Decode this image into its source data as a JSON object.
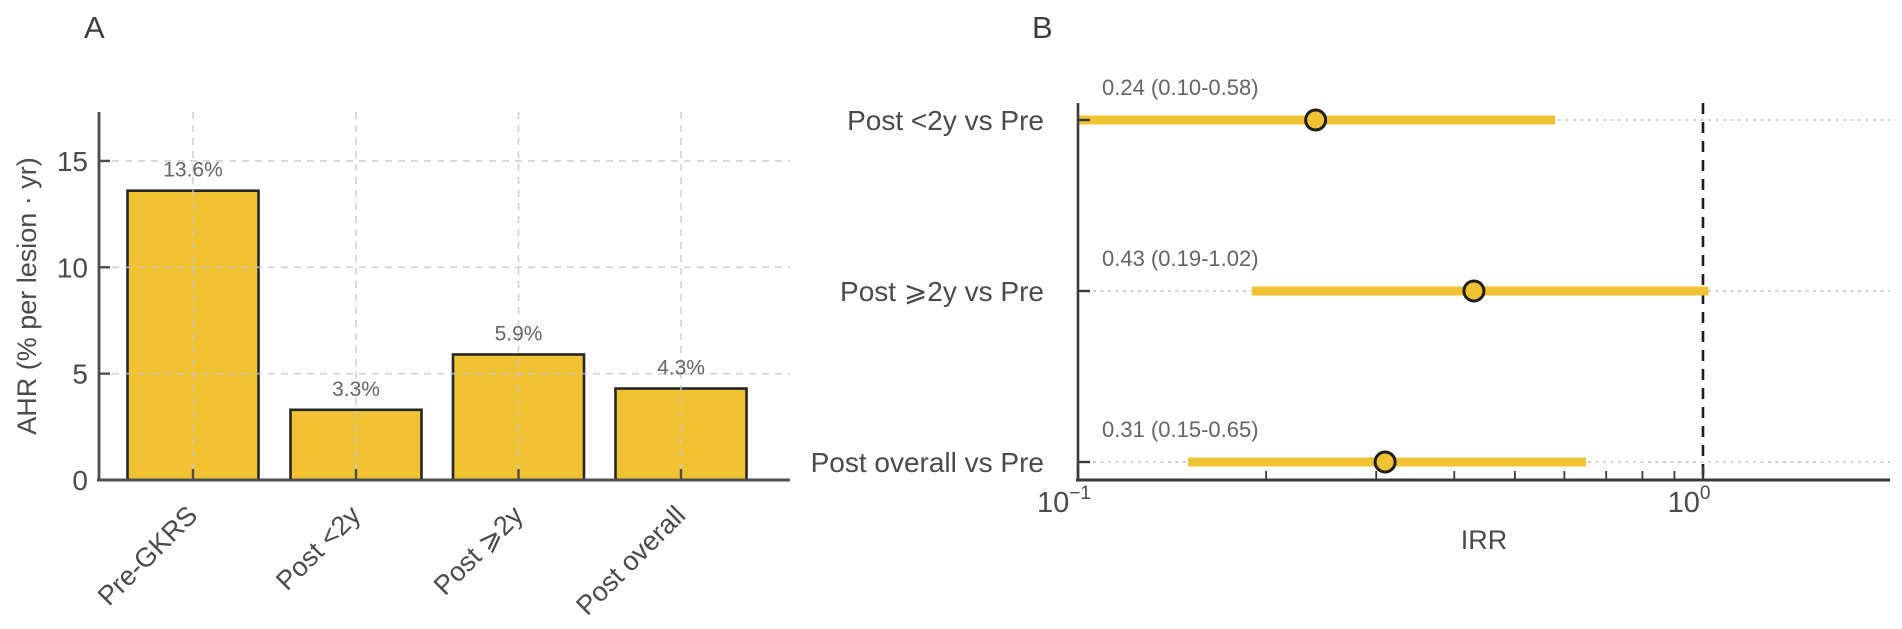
{
  "figure": {
    "panel_a_label": "A",
    "panel_b_label": "B"
  },
  "colors": {
    "accent_yellow": "#F1C232",
    "bar_edge": "#262626",
    "axis": "#4d4d4d",
    "axis_b": "#3a3a3a",
    "tick_text": "#4a4a4a",
    "muted_text": "#646464",
    "grid": "#c8c8c8",
    "row_grid": "#cccccc",
    "reference_line": "#1a1a1a",
    "marker_edge": "#1f1f1f"
  },
  "chart_data": [
    {
      "id": "panel-a",
      "type": "bar",
      "categories": [
        "Pre-GKRS",
        "Post <2y",
        "Post ⩾2y",
        "Post overall"
      ],
      "values": [
        13.6,
        3.3,
        5.9,
        4.3
      ],
      "value_labels": [
        "13.6%",
        "3.3%",
        "5.9%",
        "4.3%"
      ],
      "ylabel": "AHR (% per lesion · yr)",
      "ytick_labels": [
        "0",
        "5",
        "10",
        "15"
      ],
      "yticks": [
        0,
        5,
        10,
        15
      ],
      "ylim": [
        0,
        17.3
      ],
      "grid": "dashed horizontal at yticks and dashed vertical at category centers",
      "legend": "none"
    },
    {
      "id": "panel-b",
      "type": "forest",
      "xlabel": "IRR",
      "xscale": "log",
      "xlim": [
        0.1,
        2.0
      ],
      "xticks": [
        {
          "value": 0.1,
          "label_base": "10",
          "label_exp": "−1"
        },
        {
          "value": 1.0,
          "label_base": "10",
          "label_exp": "0"
        }
      ],
      "reference_line": 1.0,
      "rows": [
        {
          "label": "Post <2y vs Pre",
          "annotation": "0.24 (0.10-0.58)",
          "estimate": 0.24,
          "ci_low": 0.1,
          "ci_high": 0.58
        },
        {
          "label": "Post ⩾2y vs Pre",
          "annotation": "0.43 (0.19-1.02)",
          "estimate": 0.43,
          "ci_low": 0.19,
          "ci_high": 1.02
        },
        {
          "label": "Post overall vs Pre",
          "annotation": "0.31 (0.15-0.65)",
          "estimate": 0.31,
          "ci_low": 0.15,
          "ci_high": 0.65
        }
      ],
      "grid": "dotted horizontal line per row",
      "legend": "none"
    }
  ]
}
